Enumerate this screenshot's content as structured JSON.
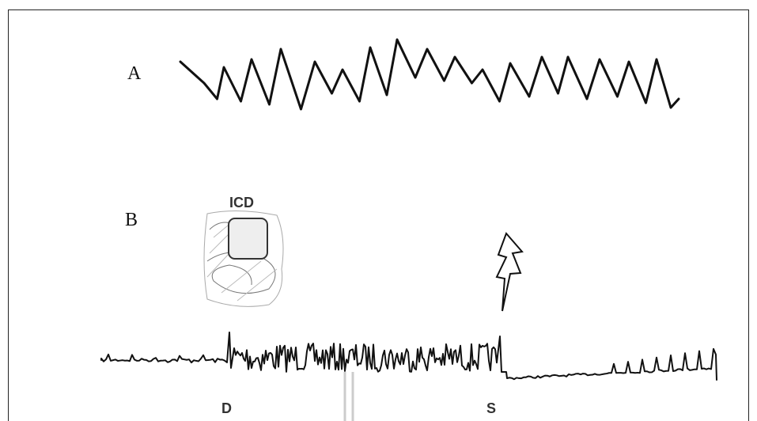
{
  "panel_a": {
    "label": "A"
  },
  "panel_b": {
    "label": "B",
    "device_label": "ICD",
    "markers": [
      {
        "label": "D"
      },
      {
        "label": "S"
      }
    ]
  }
}
